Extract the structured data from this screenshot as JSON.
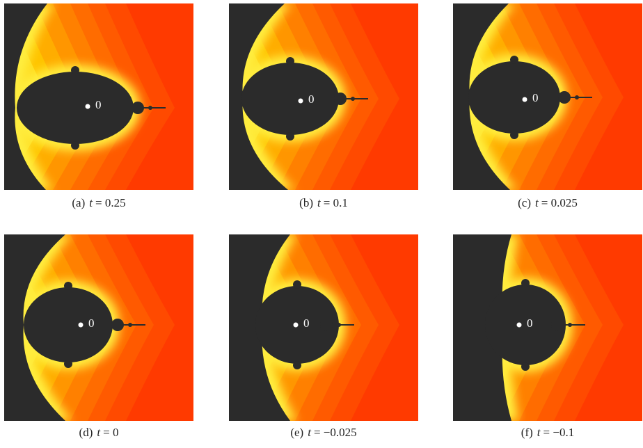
{
  "panels": [
    {
      "point_label": "0",
      "caption": {
        "tag": "(a)",
        "variable": "t",
        "relation": "= 0.25"
      }
    },
    {
      "point_label": "0",
      "caption": {
        "tag": "(b)",
        "variable": "t",
        "relation": "= 0.1"
      }
    },
    {
      "point_label": "0",
      "caption": {
        "tag": "(c)",
        "variable": "t",
        "relation": "= 0.025"
      }
    },
    {
      "point_label": "0",
      "caption": {
        "tag": "(d)",
        "variable": "t",
        "relation": "= 0"
      }
    },
    {
      "point_label": "0",
      "caption": {
        "tag": "(e)",
        "variable": "t",
        "relation": "= −0.025"
      }
    },
    {
      "point_label": "0",
      "caption": {
        "tag": "(f)",
        "variable": "t",
        "relation": "= −0.1"
      }
    }
  ]
}
